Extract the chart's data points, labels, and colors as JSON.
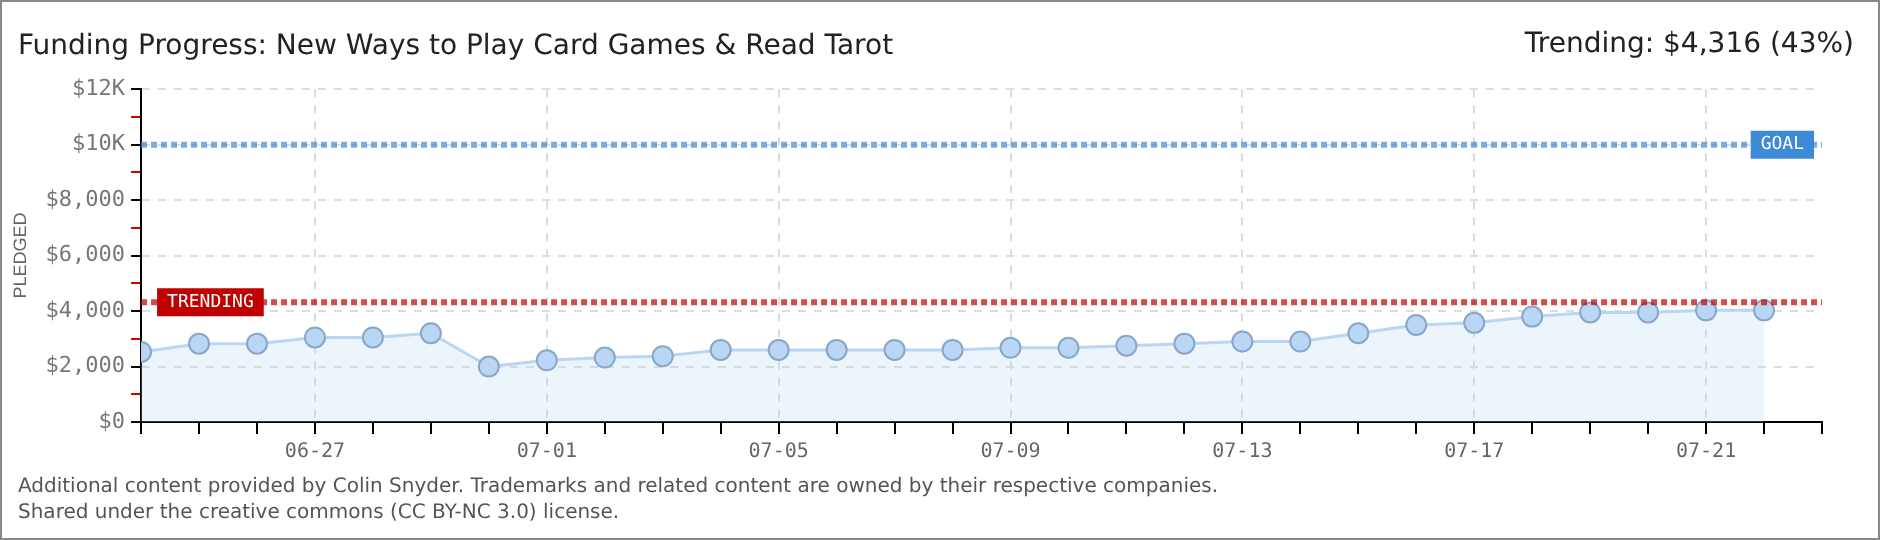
{
  "chart_data": {
    "type": "area",
    "title": "Funding Progress: New Ways to Play Card Games & Read Tarot",
    "subtitle": "Trending: $4,316 (43%)",
    "ylabel": "PLEDGED",
    "x": [
      "--06-24",
      "--06-25",
      "--06-26",
      "--06-27",
      "--06-28",
      "--06-29",
      "--06-30",
      "--07-01",
      "--07-02",
      "--07-03",
      "--07-04",
      "--07-05",
      "--07-06",
      "--07-07",
      "--07-08",
      "--07-09",
      "--07-10",
      "--07-11",
      "--07-12",
      "--07-13",
      "--07-14",
      "--07-15",
      "--07-16",
      "--07-17",
      "--07-18",
      "--07-19",
      "--07-20",
      "--07-21",
      "--07-22"
    ],
    "series": [
      {
        "color": "#b9d6f5",
        "values": [
          2525,
          2825,
          2825,
          3050,
          3050,
          3200,
          2000,
          2225,
          2325,
          2375,
          2600,
          2600,
          2600,
          2600,
          2600,
          2675,
          2675,
          2750,
          2825,
          2900,
          2900,
          3200,
          3500,
          3575,
          3800,
          3950,
          3950,
          4025,
          4025
        ]
      }
    ],
    "xlim": [
      "--06-24",
      "--07-23"
    ],
    "xticks": [
      {
        "value": "--06-24",
        "label": null
      },
      {
        "value": "--06-25",
        "label": null
      },
      {
        "value": "--06-26",
        "label": null
      },
      {
        "value": "--06-27",
        "label": "06-27"
      },
      {
        "value": "--06-28",
        "label": null
      },
      {
        "value": "--06-29",
        "label": null
      },
      {
        "value": "--06-30",
        "label": null
      },
      {
        "value": "--07-01",
        "label": "07-01"
      },
      {
        "value": "--07-02",
        "label": null
      },
      {
        "value": "--07-03",
        "label": null
      },
      {
        "value": "--07-04",
        "label": null
      },
      {
        "value": "--07-05",
        "label": "07-05"
      },
      {
        "value": "--07-06",
        "label": null
      },
      {
        "value": "--07-07",
        "label": null
      },
      {
        "value": "--07-08",
        "label": null
      },
      {
        "value": "--07-09",
        "label": "07-09"
      },
      {
        "value": "--07-10",
        "label": null
      },
      {
        "value": "--07-11",
        "label": null
      },
      {
        "value": "--07-12",
        "label": null
      },
      {
        "value": "--07-13",
        "label": "07-13"
      },
      {
        "value": "--07-14",
        "label": null
      },
      {
        "value": "--07-15",
        "label": null
      },
      {
        "value": "--07-16",
        "label": null
      },
      {
        "value": "--07-17",
        "label": "07-17"
      },
      {
        "value": "--07-18",
        "label": null
      },
      {
        "value": "--07-19",
        "label": null
      },
      {
        "value": "--07-20",
        "label": null
      },
      {
        "value": "--07-21",
        "label": "07-21"
      },
      {
        "value": "--07-22",
        "label": null
      },
      {
        "value": "--07-23",
        "label": null
      }
    ],
    "ylim": [
      0,
      12000
    ],
    "yticks": [
      {
        "value": 0,
        "label": "$0"
      },
      {
        "value": 1000,
        "label": null
      },
      {
        "value": 2000,
        "label": "$2,000"
      },
      {
        "value": 3000,
        "label": null
      },
      {
        "value": 4000,
        "label": "$4,000"
      },
      {
        "value": 5000,
        "label": null
      },
      {
        "value": 6000,
        "label": "$6,000"
      },
      {
        "value": 7000,
        "label": null
      },
      {
        "value": 8000,
        "label": "$8,000"
      },
      {
        "value": 9000,
        "label": null
      },
      {
        "value": 10000,
        "label": "$10K"
      },
      {
        "value": 11000,
        "label": null
      },
      {
        "value": 12000,
        "label": "$12K"
      }
    ],
    "ref_lines": [
      {
        "axis": "y",
        "value": 10000,
        "label": "GOAL",
        "color": "#3f8ad6",
        "line_style": "dotted"
      },
      {
        "axis": "y",
        "value": 4316,
        "label": "TRENDING",
        "color": "#c00000",
        "line_style": "dotted"
      }
    ],
    "grid": true,
    "legend": false,
    "marker": "circle",
    "line_style": "solid",
    "annotations": [
      "Additional content provided by Colin Snyder. Trademarks and related content are owned by their respective companies.",
      "Shared under the creative commons (CC BY-NC 3.0) license."
    ]
  }
}
